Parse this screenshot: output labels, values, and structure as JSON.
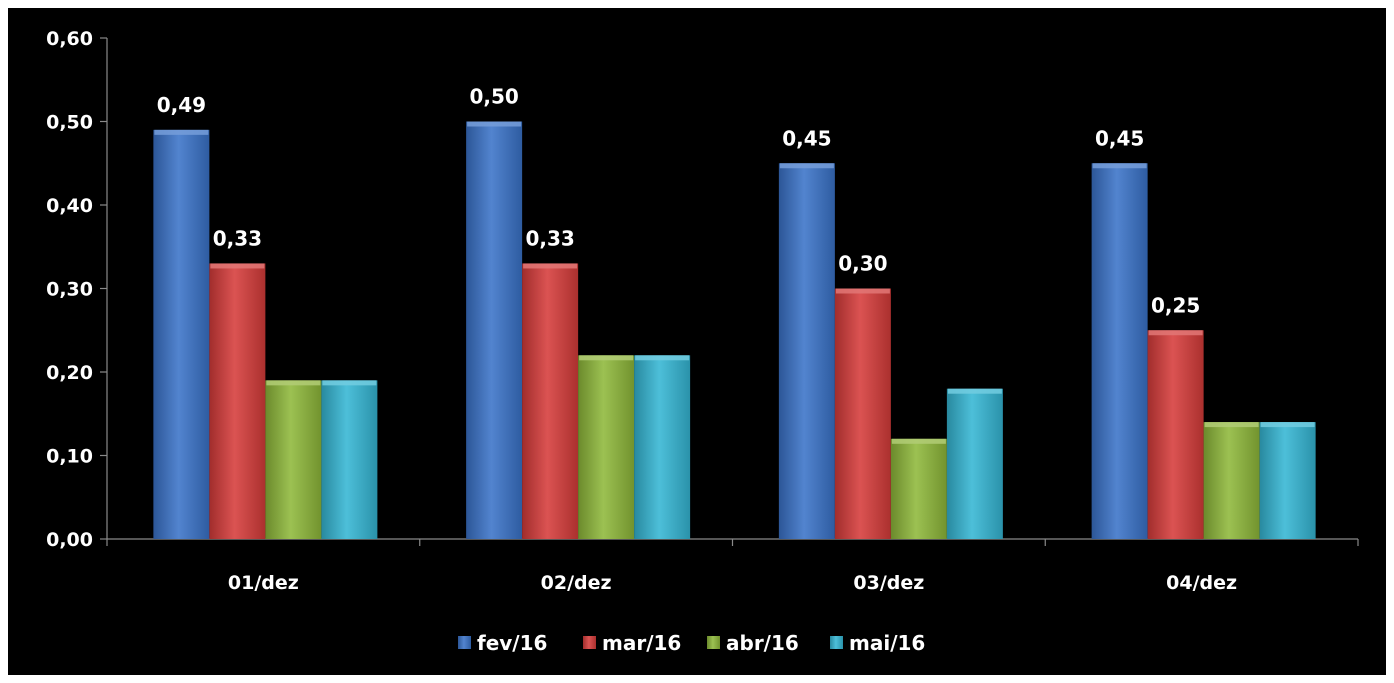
{
  "chart_data": {
    "type": "bar",
    "categories": [
      "01/dez",
      "02/dez",
      "03/dez",
      "04/dez"
    ],
    "series": [
      {
        "name": "fev/16",
        "values": [
          0.49,
          0.5,
          0.45,
          0.45
        ],
        "color": "#3a73c9",
        "labels": [
          "0,49",
          "0,50",
          "0,45",
          "0,45"
        ]
      },
      {
        "name": "mar/16",
        "values": [
          0.33,
          0.33,
          0.3,
          0.25
        ],
        "color": "#d63c3a",
        "labels": [
          "0,33",
          "0,33",
          "0,30",
          "0,25"
        ]
      },
      {
        "name": "abr/16",
        "values": [
          0.19,
          0.22,
          0.12,
          0.14
        ],
        "color": "#8fb83a",
        "labels": []
      },
      {
        "name": "mai/16",
        "values": [
          0.19,
          0.22,
          0.18,
          0.14
        ],
        "color": "#35b6d4",
        "labels": []
      }
    ],
    "yticks": [
      "0,00",
      "0,10",
      "0,20",
      "0,30",
      "0,40",
      "0,50",
      "0,60"
    ],
    "ylim": [
      0,
      0.6
    ],
    "legend_position": "bottom",
    "grid": false,
    "title": "",
    "xlabel": "",
    "ylabel": ""
  }
}
